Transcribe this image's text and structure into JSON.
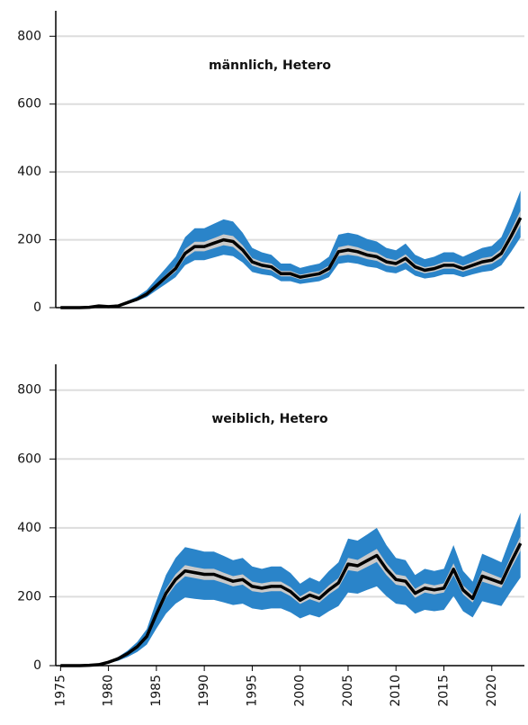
{
  "chart_data": [
    {
      "type": "line",
      "title": "männlich, Hetero",
      "x": [
        1975,
        1976,
        1977,
        1978,
        1979,
        1980,
        1981,
        1982,
        1983,
        1984,
        1985,
        1986,
        1987,
        1988,
        1989,
        1990,
        1991,
        1992,
        1993,
        1994,
        1995,
        1996,
        1997,
        1998,
        1999,
        2000,
        2001,
        2002,
        2003,
        2004,
        2005,
        2006,
        2007,
        2008,
        2009,
        2010,
        2011,
        2012,
        2013,
        2014,
        2015,
        2016,
        2017,
        2018,
        2019,
        2020,
        2021,
        2022,
        2023
      ],
      "xlim": [
        1974.5,
        2023.4
      ],
      "ylim": [
        0,
        875
      ],
      "yticks": [
        0,
        200,
        400,
        600,
        800
      ],
      "grid": true,
      "bands": [
        {
          "color": "#2a84c9",
          "lower": [
            0,
            0,
            0,
            1,
            4,
            2,
            4,
            12,
            20,
            31,
            51,
            70,
            90,
            125,
            140,
            140,
            148,
            156,
            152,
            133,
            105,
            98,
            94,
            78,
            78,
            70,
            74,
            78,
            90,
            129,
            133,
            129,
            121,
            117,
            105,
            101,
            113,
            94,
            86,
            90,
            98,
            98,
            90,
            98,
            105,
            109,
            125,
            164,
            207
          ],
          "upper": [
            0,
            0,
            0,
            1,
            7,
            4,
            7,
            20,
            33,
            52,
            85,
            117,
            150,
            208,
            234,
            234,
            247,
            260,
            254,
            221,
            176,
            163,
            156,
            130,
            130,
            117,
            124,
            130,
            150,
            215,
            221,
            215,
            202,
            195,
            176,
            169,
            189,
            156,
            143,
            150,
            163,
            163,
            150,
            163,
            176,
            182,
            208,
            273,
            345
          ]
        },
        {
          "color": "#c9c9c9",
          "lower": [
            0,
            0,
            0,
            1,
            5,
            3,
            5,
            14,
            23,
            37,
            60,
            83,
            106,
            147,
            166,
            166,
            175,
            184,
            179,
            156,
            124,
            115,
            110,
            92,
            92,
            83,
            87,
            92,
            106,
            152,
            156,
            152,
            143,
            138,
            124,
            120,
            133,
            110,
            101,
            106,
            115,
            115,
            106,
            115,
            124,
            129,
            147,
            193,
            244
          ],
          "upper": [
            0,
            0,
            0,
            1,
            5,
            3,
            5,
            16,
            27,
            43,
            70,
            97,
            124,
            173,
            194,
            194,
            205,
            216,
            211,
            184,
            146,
            135,
            130,
            108,
            108,
            97,
            103,
            108,
            124,
            178,
            184,
            178,
            167,
            162,
            146,
            140,
            157,
            130,
            119,
            124,
            135,
            135,
            124,
            135,
            146,
            151,
            173,
            227,
            286
          ]
        }
      ],
      "line": {
        "color": "#000000",
        "values": [
          0,
          0,
          0,
          1,
          5,
          3,
          5,
          15,
          25,
          40,
          65,
          90,
          115,
          160,
          180,
          180,
          190,
          200,
          195,
          170,
          135,
          125,
          120,
          100,
          100,
          90,
          95,
          100,
          115,
          165,
          170,
          165,
          155,
          150,
          135,
          130,
          145,
          120,
          110,
          115,
          125,
          125,
          115,
          125,
          135,
          140,
          160,
          210,
          265
        ]
      }
    },
    {
      "type": "line",
      "title": "weiblich, Hetero",
      "x": [
        1975,
        1976,
        1977,
        1978,
        1979,
        1980,
        1981,
        1982,
        1983,
        1984,
        1985,
        1986,
        1987,
        1988,
        1989,
        1990,
        1991,
        1992,
        1993,
        1994,
        1995,
        1996,
        1997,
        1998,
        1999,
        2000,
        2001,
        2002,
        2003,
        2004,
        2005,
        2006,
        2007,
        2008,
        2009,
        2010,
        2011,
        2012,
        2013,
        2014,
        2015,
        2016,
        2017,
        2018,
        2019,
        2020,
        2021,
        2022,
        2023
      ],
      "xlim": [
        1974.5,
        2023.4
      ],
      "xticks": [
        1975,
        1980,
        1985,
        1990,
        1995,
        2000,
        2005,
        2010,
        2015,
        2020
      ],
      "ylim": [
        0,
        875
      ],
      "yticks": [
        0,
        200,
        400,
        600,
        800
      ],
      "grid": true,
      "bands": [
        {
          "color": "#2a84c9",
          "lower": [
            0,
            0,
            0,
            1,
            2,
            7,
            14,
            25,
            40,
            61,
            108,
            151,
            180,
            198,
            194,
            191,
            191,
            184,
            176,
            180,
            166,
            162,
            166,
            166,
            155,
            137,
            148,
            140,
            158,
            173,
            212,
            209,
            220,
            230,
            202,
            180,
            176,
            151,
            162,
            158,
            162,
            202,
            158,
            140,
            187,
            180,
            173,
            216,
            256
          ],
          "upper": [
            0,
            0,
            0,
            1,
            4,
            13,
            25,
            44,
            69,
            106,
            188,
            263,
            313,
            344,
            338,
            331,
            331,
            319,
            306,
            313,
            288,
            281,
            288,
            288,
            269,
            238,
            256,
            244,
            275,
            300,
            369,
            363,
            381,
            400,
            350,
            313,
            306,
            263,
            281,
            275,
            281,
            350,
            275,
            244,
            325,
            313,
            300,
            375,
            444
          ]
        },
        {
          "color": "#c9c9c9",
          "lower": [
            0,
            0,
            0,
            1,
            3,
            9,
            19,
            33,
            52,
            80,
            141,
            197,
            235,
            259,
            254,
            249,
            249,
            240,
            230,
            235,
            216,
            212,
            216,
            216,
            202,
            179,
            193,
            183,
            207,
            226,
            277,
            273,
            287,
            301,
            263,
            235,
            230,
            197,
            212,
            207,
            212,
            263,
            207,
            183,
            244,
            235,
            226,
            282,
            334
          ],
          "upper": [
            0,
            0,
            0,
            1,
            3,
            11,
            21,
            37,
            58,
            90,
            159,
            223,
            265,
            292,
            286,
            281,
            281,
            270,
            260,
            265,
            244,
            239,
            244,
            244,
            228,
            201,
            217,
            207,
            233,
            254,
            313,
            307,
            323,
            339,
            297,
            265,
            260,
            223,
            239,
            233,
            239,
            297,
            233,
            207,
            276,
            265,
            254,
            318,
            376
          ]
        }
      ],
      "line": {
        "color": "#000000",
        "values": [
          0,
          0,
          0,
          1,
          3,
          10,
          20,
          35,
          55,
          85,
          150,
          210,
          250,
          275,
          270,
          265,
          265,
          255,
          245,
          250,
          230,
          225,
          230,
          230,
          215,
          190,
          205,
          195,
          220,
          240,
          295,
          290,
          305,
          320,
          280,
          250,
          245,
          210,
          225,
          220,
          225,
          280,
          220,
          195,
          260,
          250,
          240,
          300,
          355
        ]
      }
    }
  ]
}
